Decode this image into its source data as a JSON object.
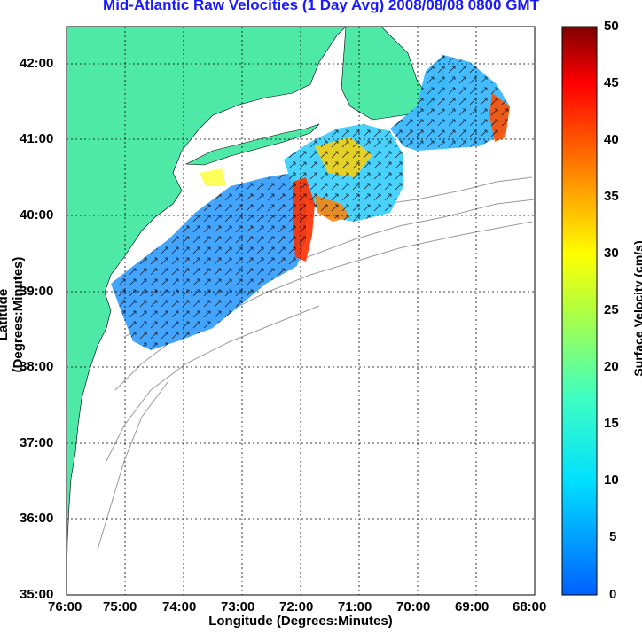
{
  "title": "Mid-Atlantic Raw Velocities (1 Day Avg) 2008/08/08 0800 GMT",
  "xlabel": "Longitude (Degrees:Minutes)",
  "ylabel": "Latitude (Degrees:Minutes)",
  "colorbar_label": "Surface Velocity (cm/s)",
  "x_ticks": [
    "76:00",
    "75:00",
    "74:00",
    "73:00",
    "72:00",
    "71:00",
    "70:00",
    "69:00",
    "68:00"
  ],
  "y_ticks": [
    "42:00",
    "41:00",
    "40:00",
    "39:00",
    "38:00",
    "37:00",
    "36:00",
    "35:00"
  ],
  "colorbar_ticks": [
    "50",
    "45",
    "40",
    "35",
    "30",
    "25",
    "20",
    "15",
    "10",
    "5",
    "0"
  ],
  "colors": {
    "land": "#4ee9a6",
    "title": "#1a1aff",
    "grid": "#000000",
    "bathymetry": "#999999"
  },
  "chart_data": {
    "type": "heatmap",
    "title": "Mid-Atlantic Raw Velocities (1 Day Avg) 2008/08/08 0800 GMT",
    "xlabel": "Longitude (Degrees:Minutes)",
    "ylabel": "Latitude (Degrees:Minutes)",
    "xlim": [
      "76:00 W",
      "68:00 W"
    ],
    "ylim": [
      "35:00 N",
      "42:30 N"
    ],
    "colorbar": {
      "label": "Surface Velocity (cm/s)",
      "range": [
        0,
        50
      ],
      "colormap": "jet"
    },
    "grid": true
  }
}
